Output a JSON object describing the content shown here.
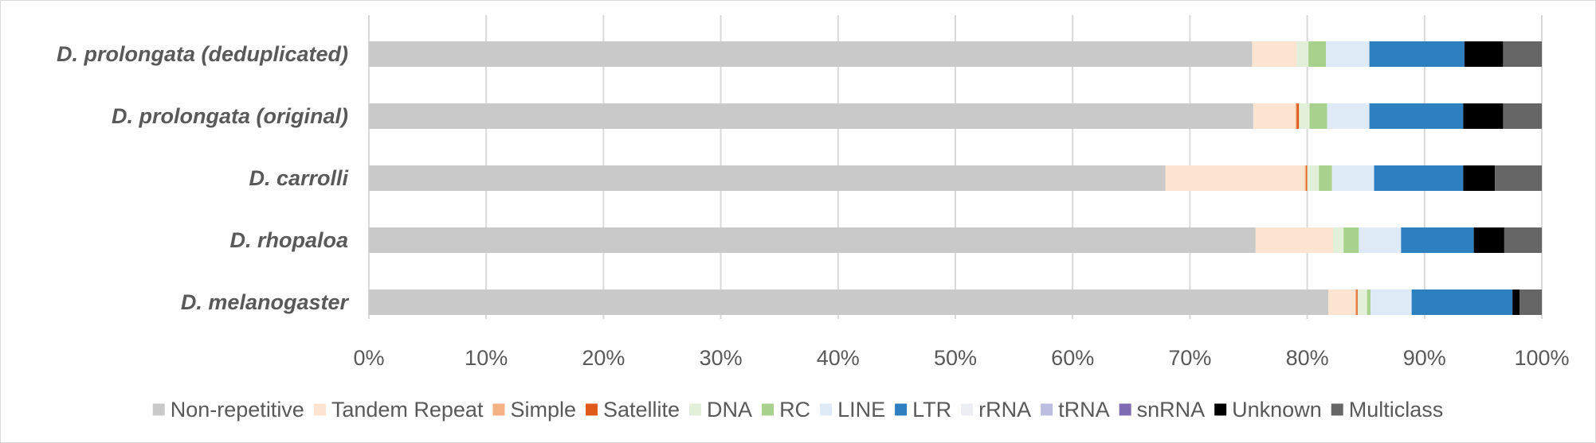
{
  "chart_data": {
    "type": "bar",
    "orientation": "horizontal",
    "stacked": "percent",
    "categories": [
      "D. prolongata (deduplicated)",
      "D. prolongata (original)",
      "D. carrolli",
      "D. rhopaloa",
      "D. melanogaster"
    ],
    "x_ticks": [
      "0%",
      "10%",
      "20%",
      "30%",
      "40%",
      "50%",
      "60%",
      "70%",
      "80%",
      "90%",
      "100%"
    ],
    "xlim": [
      0,
      100
    ],
    "grid": true,
    "legend_position": "bottom",
    "series": [
      {
        "name": "Non-repetitive",
        "color": "#c9c9c9",
        "values": [
          75.3,
          75.4,
          67.9,
          75.6,
          81.8
        ]
      },
      {
        "name": "Tandem Repeat",
        "color": "#fce4d0",
        "values": [
          3.8,
          3.6,
          11.9,
          6.6,
          2.3
        ]
      },
      {
        "name": "Simple",
        "color": "#f4b183",
        "values": [
          0.0,
          0.1,
          0.1,
          0.0,
          0.1
        ]
      },
      {
        "name": "Satellite",
        "color": "#e05a1c",
        "values": [
          0.0,
          0.2,
          0.1,
          0.0,
          0.1
        ]
      },
      {
        "name": "DNA",
        "color": "#e2f0d9",
        "values": [
          1.0,
          0.9,
          1.0,
          0.9,
          0.8
        ]
      },
      {
        "name": "RC",
        "color": "#a9d18e",
        "values": [
          1.5,
          1.5,
          1.1,
          1.3,
          0.3
        ]
      },
      {
        "name": "LINE",
        "color": "#deebf7",
        "values": [
          3.7,
          3.6,
          3.6,
          3.6,
          3.5
        ]
      },
      {
        "name": "LTR",
        "color": "#2e7fc0",
        "values": [
          8.1,
          8.0,
          7.6,
          6.2,
          8.6
        ]
      },
      {
        "name": "rRNA",
        "color": "#ededf4",
        "values": [
          0.0,
          0.0,
          0.0,
          0.0,
          0.0
        ]
      },
      {
        "name": "tRNA",
        "color": "#bcbde0",
        "values": [
          0.0,
          0.0,
          0.0,
          0.0,
          0.0
        ]
      },
      {
        "name": "snRNA",
        "color": "#7e6cb2",
        "values": [
          0.0,
          0.0,
          0.0,
          0.0,
          0.0
        ]
      },
      {
        "name": "Unknown",
        "color": "#000000",
        "values": [
          3.3,
          3.4,
          2.7,
          2.6,
          0.6
        ]
      },
      {
        "name": "Multiclass",
        "color": "#666666",
        "values": [
          3.3,
          3.3,
          4.0,
          3.2,
          1.9
        ]
      }
    ]
  }
}
